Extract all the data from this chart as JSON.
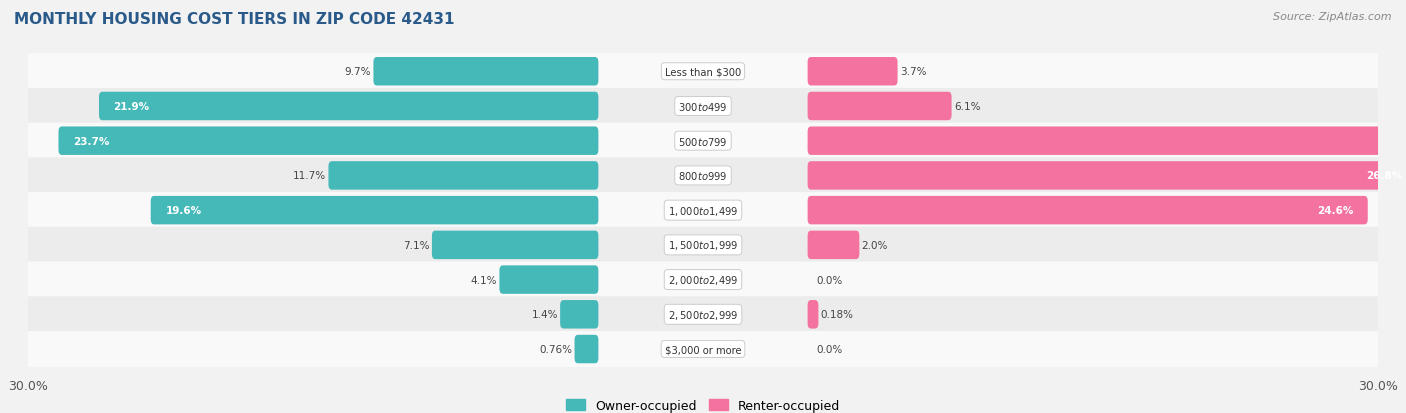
{
  "title": "MONTHLY HOUSING COST TIERS IN ZIP CODE 42431",
  "source": "Source: ZipAtlas.com",
  "categories": [
    "Less than $300",
    "$300 to $499",
    "$500 to $799",
    "$800 to $999",
    "$1,000 to $1,499",
    "$1,500 to $1,999",
    "$2,000 to $2,499",
    "$2,500 to $2,999",
    "$3,000 or more"
  ],
  "owner_values": [
    9.7,
    21.9,
    23.7,
    11.7,
    19.6,
    7.1,
    4.1,
    1.4,
    0.76
  ],
  "renter_values": [
    3.7,
    6.1,
    29.7,
    26.8,
    24.6,
    2.0,
    0.0,
    0.18,
    0.0
  ],
  "owner_color": "#45B8B8",
  "renter_color": "#F472A0",
  "background_color": "#f2f2f2",
  "row_bg_light": "#f9f9f9",
  "row_bg_dark": "#ececec",
  "xlim": 30.0,
  "bar_height": 0.52,
  "legend_owner": "Owner-occupied",
  "legend_renter": "Renter-occupied",
  "title_color": "#2a5a8a",
  "source_color": "#888888"
}
